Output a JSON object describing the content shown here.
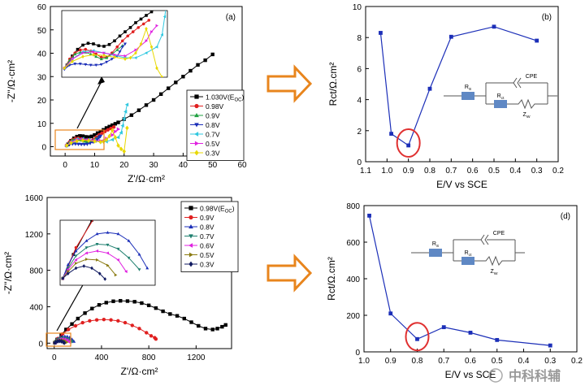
{
  "chart_data": [
    {
      "id": "a",
      "type": "scatter",
      "panel_label": "(a)",
      "xlabel": "Z'/Ω·cm²",
      "ylabel": "-Z''/Ω·cm²",
      "xlim": [
        -5,
        60
      ],
      "ylim": [
        -4,
        60
      ],
      "xticks": [
        0,
        10,
        20,
        30,
        40,
        50,
        60
      ],
      "yticks": [
        0,
        10,
        20,
        30,
        40,
        50,
        60
      ],
      "legend": [
        {
          "label": "1.030V(E",
          "sub": "OC",
          "tail": ")",
          "color": "#000000",
          "marker": "square"
        },
        {
          "label": "0.98V",
          "color": "#e02020",
          "marker": "circle"
        },
        {
          "label": "0.9V",
          "color": "#20a040",
          "marker": "triangle-up"
        },
        {
          "label": "0.8V",
          "color": "#1c2fb8",
          "marker": "triangle-down"
        },
        {
          "label": "0.7V",
          "color": "#30c8e0",
          "marker": "triangle-left"
        },
        {
          "label": "0.5V",
          "color": "#e020e0",
          "marker": "triangle-right"
        },
        {
          "label": "0.3V",
          "color": "#e8d800",
          "marker": "diamond"
        }
      ],
      "series": [
        {
          "name": "1.030V(EOC)",
          "color": "#000000",
          "marker": "square",
          "x": [
            1,
            2,
            3,
            4,
            5,
            6,
            7,
            8,
            9,
            10,
            11,
            12,
            13,
            14,
            15,
            16,
            17,
            18,
            20,
            22.5,
            25,
            27.5,
            30,
            32.5,
            35,
            37.5,
            40,
            42.5,
            45,
            47.5,
            50
          ],
          "y": [
            1,
            2.5,
            3.6,
            4.3,
            4.6,
            4.5,
            4.2,
            4.1,
            4.4,
            5,
            5.8,
            6.5,
            7.2,
            8,
            8.6,
            9.2,
            9.8,
            10.4,
            11.8,
            13.5,
            15.6,
            17.8,
            20,
            22.5,
            25,
            27.5,
            30,
            32.5,
            35,
            37,
            39.5
          ]
        },
        {
          "name": "0.98V",
          "color": "#e02020",
          "marker": "circle",
          "x": [
            0.5,
            1.5,
            2.5,
            3.5,
            4.5,
            5.5,
            6.5,
            7.5,
            8.5,
            9.5,
            10.5,
            11.5,
            12.5,
            13.5,
            14.5,
            15.5,
            16.5
          ],
          "y": [
            0.5,
            2,
            3,
            3.5,
            3.6,
            3.3,
            2.8,
            2.3,
            2.3,
            3,
            4,
            5,
            5.8,
            6.5,
            7.2,
            7.8,
            8.4
          ]
        },
        {
          "name": "0.9V",
          "color": "#20a040",
          "marker": "triangle-up",
          "x": [
            0.5,
            1.5,
            2.5,
            3.5,
            4.5,
            5.5,
            6.5,
            7.5,
            8.5,
            9.5,
            10.5,
            11.5
          ],
          "y": [
            0.5,
            1.8,
            2.8,
            3.1,
            3.1,
            2.8,
            2.4,
            2,
            2.2,
            2.8,
            3.5,
            4.2
          ]
        },
        {
          "name": "0.8V",
          "color": "#1c2fb8",
          "marker": "triangle-down",
          "x": [
            0.5,
            1.5,
            2.5,
            3.5,
            4.5,
            5.5,
            6.5,
            7.5,
            8.5,
            9.5,
            10.5,
            11,
            11.5,
            12
          ],
          "y": [
            0.3,
            1,
            1.2,
            1.2,
            1.1,
            1,
            1,
            1.1,
            1.5,
            2,
            2.5,
            3.2,
            4,
            4.5
          ]
        },
        {
          "name": "0.7V",
          "color": "#30c8e0",
          "marker": "triangle-left",
          "x": [
            0.5,
            2,
            4,
            6,
            8,
            10,
            12,
            14,
            16,
            18,
            19,
            19.5,
            20,
            20.5,
            21
          ],
          "y": [
            0.5,
            2,
            3.2,
            3.4,
            3,
            2.6,
            2.2,
            2.2,
            3,
            4,
            6,
            9,
            12,
            15,
            18
          ]
        },
        {
          "name": "0.5V",
          "color": "#e020e0",
          "marker": "triangle-right",
          "x": [
            0.5,
            2,
            4,
            6,
            8,
            10,
            12,
            14,
            16,
            17,
            18
          ],
          "y": [
            0.5,
            2,
            3,
            3.2,
            3,
            2.7,
            2.5,
            3.5,
            5,
            6.5,
            7.5
          ]
        },
        {
          "name": "0.3V",
          "color": "#e8d800",
          "marker": "diamond",
          "x": [
            0.5,
            2,
            4,
            6,
            8,
            10,
            12,
            13,
            14,
            15,
            16,
            17,
            18,
            19,
            20,
            21
          ],
          "y": [
            0.5,
            1.6,
            2.4,
            2.7,
            2.6,
            2.3,
            2,
            2.2,
            3,
            4.5,
            7,
            4,
            0.5,
            -1,
            -2,
            8
          ]
        }
      ],
      "inset": true
    },
    {
      "id": "b",
      "type": "line",
      "panel_label": "(b)",
      "xlabel": "E/V vs SCE",
      "ylabel": "Rct/Ω.cm²",
      "xlim": [
        1.1,
        0.2
      ],
      "ylim": [
        0,
        10
      ],
      "xticks": [
        1.1,
        1.0,
        0.9,
        0.8,
        0.7,
        0.6,
        0.5,
        0.4,
        0.3,
        0.2
      ],
      "xtick_labels": [
        "1.1",
        "1.0",
        "0.9",
        "0.8",
        "0.7",
        "0.6",
        "0.5",
        "0.4",
        "0.3",
        "0.2"
      ],
      "yticks": [
        0,
        2,
        4,
        6,
        8,
        10
      ],
      "x": [
        1.03,
        0.98,
        0.9,
        0.8,
        0.7,
        0.5,
        0.3
      ],
      "values": [
        8.3,
        1.8,
        1.05,
        4.7,
        8.05,
        8.7,
        7.8
      ],
      "highlight": {
        "x": 0.9,
        "y": 1.05
      },
      "circuit": {
        "rs": "R",
        "rs_sub": "S",
        "rct": "R",
        "rct_sub": "ct",
        "cpe": "CPE",
        "zw": "Z",
        "zw_sub": "W"
      }
    },
    {
      "id": "c",
      "type": "scatter",
      "panel_label": "(c)",
      "xlabel": "Z'/Ω·cm²",
      "ylabel": "-Z''/Ω·cm²",
      "xlim": [
        -60,
        1500
      ],
      "ylim": [
        -60,
        1600
      ],
      "xticks": [
        0,
        400,
        800,
        1200
      ],
      "yticks": [
        0,
        400,
        800,
        1200,
        1600
      ],
      "legend": [
        {
          "label": "0.98V(E",
          "sub": "OC",
          "tail": ")",
          "color": "#000000",
          "marker": "square"
        },
        {
          "label": "0.9V",
          "color": "#e02020",
          "marker": "circle"
        },
        {
          "label": "0.8V",
          "color": "#1c2fb8",
          "marker": "triangle-up"
        },
        {
          "label": "0.7V",
          "color": "#208070",
          "marker": "triangle-down"
        },
        {
          "label": "0.6V",
          "color": "#e020e0",
          "marker": "triangle-left"
        },
        {
          "label": "0.5V",
          "color": "#8a7a10",
          "marker": "triangle-right"
        },
        {
          "label": "0.3V",
          "color": "#101a60",
          "marker": "diamond"
        }
      ],
      "series": [
        {
          "name": "0.98V(EOC)",
          "color": "#000000",
          "marker": "square",
          "x": [
            5,
            25,
            60,
            100,
            150,
            200,
            260,
            320,
            380,
            440,
            500,
            560,
            620,
            680,
            740,
            800,
            860,
            920,
            980,
            1040,
            1100,
            1160,
            1220,
            1280,
            1340,
            1380,
            1420,
            1450
          ],
          "y": [
            5,
            40,
            90,
            150,
            210,
            270,
            330,
            380,
            420,
            445,
            460,
            465,
            462,
            455,
            440,
            415,
            385,
            350,
            320,
            300,
            270,
            230,
            190,
            160,
            150,
            160,
            180,
            200
          ]
        },
        {
          "name": "0.9V",
          "color": "#e02020",
          "marker": "circle",
          "x": [
            5,
            30,
            70,
            120,
            180,
            240,
            300,
            360,
            420,
            480,
            540,
            600,
            660,
            720,
            780,
            820,
            850,
            860
          ],
          "y": [
            5,
            50,
            100,
            150,
            190,
            225,
            245,
            255,
            260,
            255,
            245,
            225,
            195,
            160,
            115,
            80,
            60,
            45
          ]
        },
        {
          "name": "0.8V",
          "color": "#1c2fb8",
          "marker": "triangle-up",
          "x": [
            5,
            15,
            30,
            50,
            70,
            90,
            110,
            130,
            150,
            165
          ],
          "y": [
            5,
            25,
            45,
            60,
            70,
            72,
            70,
            60,
            40,
            20
          ]
        },
        {
          "name": "0.7V",
          "color": "#208070",
          "marker": "triangle-down",
          "x": [
            5,
            15,
            30,
            50,
            70,
            90,
            110,
            130,
            150
          ],
          "y": [
            5,
            20,
            38,
            50,
            55,
            54,
            48,
            35,
            18
          ]
        },
        {
          "name": "0.6V",
          "color": "#e020e0",
          "marker": "triangle-left",
          "x": [
            5,
            15,
            30,
            50,
            70,
            90,
            110,
            125
          ],
          "y": [
            5,
            18,
            32,
            42,
            45,
            42,
            32,
            15
          ]
        },
        {
          "name": "0.5V",
          "color": "#8a7a10",
          "marker": "triangle-right",
          "x": [
            5,
            15,
            30,
            50,
            70,
            90,
            105
          ],
          "y": [
            5,
            15,
            27,
            33,
            32,
            24,
            10
          ]
        },
        {
          "name": "0.3V",
          "color": "#101a60",
          "marker": "diamond",
          "x": [
            5,
            15,
            30,
            45,
            60,
            75,
            85
          ],
          "y": [
            5,
            12,
            20,
            23,
            20,
            12,
            4
          ]
        }
      ],
      "inset": true
    },
    {
      "id": "d",
      "type": "line",
      "panel_label": "(d)",
      "xlabel": "E/V vs SCE",
      "ylabel": "Rct/Ω.cm²",
      "xlim": [
        1.0,
        0.2
      ],
      "ylim": [
        0,
        800
      ],
      "xticks": [
        1.0,
        0.9,
        0.8,
        0.7,
        0.6,
        0.5,
        0.4,
        0.3,
        0.2
      ],
      "xtick_labels": [
        "1.0",
        "0.9",
        "0.8",
        "0.7",
        "0.6",
        "0.5",
        "0.4",
        "0.3",
        "0.2"
      ],
      "yticks": [
        0,
        200,
        400,
        600,
        800
      ],
      "x": [
        0.98,
        0.9,
        0.8,
        0.7,
        0.6,
        0.5,
        0.3
      ],
      "values": [
        745,
        210,
        70,
        135,
        105,
        65,
        35
      ],
      "highlight": {
        "x": 0.8,
        "y": 70
      },
      "circuit": {
        "rs": "R",
        "rs_sub": "S",
        "rct": "R",
        "rct_sub": "ct",
        "cpe": "CPE",
        "zw": "Z",
        "zw_sub": "W"
      }
    }
  ],
  "watermark": "中科科辅",
  "colors": {
    "axis": "#000000",
    "line_blue": "#1c2fb8",
    "highlight_red": "#e03030",
    "arrow_orange": "#e8851d",
    "resistor_blue": "#5f88c4"
  }
}
